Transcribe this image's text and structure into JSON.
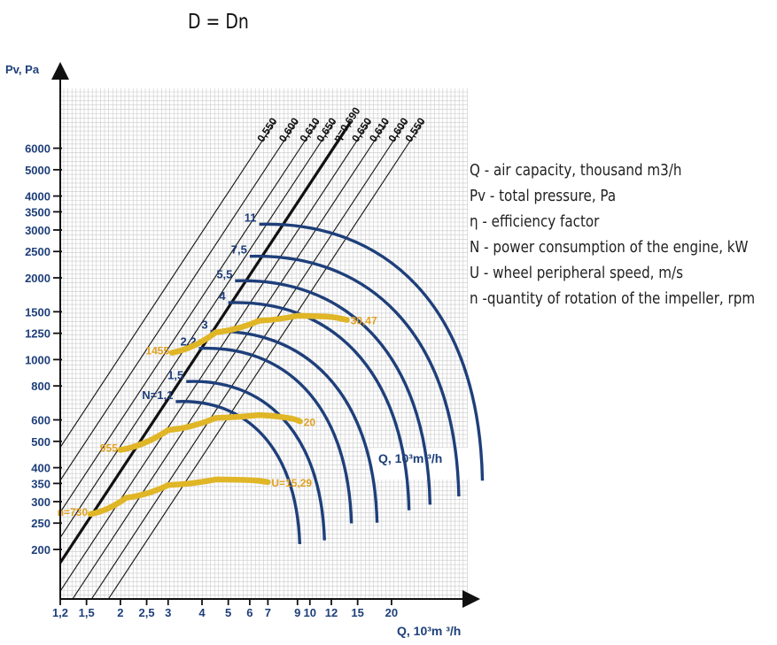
{
  "title": "D = Dn",
  "legend": [
    "Q - air capacity, thousand m3/h",
    "Pv - total pressure, Pa",
    "η - efficiency factor",
    "N - power consumption of the engine, kW",
    "U - wheel peripheral speed, m/s",
    "n -quantity of rotation of the impeller, rpm"
  ],
  "colors": {
    "grid": "#c9c9c9",
    "axis": "#111111",
    "power": "#1e3f7a",
    "speed": "#e0b627",
    "speed_label": "#e0a020",
    "text": "#222222"
  },
  "chart_data": {
    "type": "line",
    "title": "D = Dn",
    "x_axis": {
      "label_mid": "Q, 10³m ³/h",
      "label_bottom": "Q, 10³m ³/h",
      "scale": "log",
      "ticks": [
        {
          "value": 1.2,
          "label": "1,2"
        },
        {
          "value": 1.5,
          "label": "1,5"
        },
        {
          "value": 2,
          "label": "2"
        },
        {
          "value": 2.5,
          "label": "2,5"
        },
        {
          "value": 3,
          "label": "3"
        },
        {
          "value": 4,
          "label": "4"
        },
        {
          "value": 5,
          "label": "5"
        },
        {
          "value": 6,
          "label": "6"
        },
        {
          "value": 7,
          "label": "7"
        },
        {
          "value": 9,
          "label": "9"
        },
        {
          "value": 10,
          "label": "10"
        },
        {
          "value": 12,
          "label": "12"
        },
        {
          "value": 15,
          "label": "15"
        },
        {
          "value": 20,
          "label": "20"
        }
      ]
    },
    "y_axis": {
      "label": "Pv, Pa",
      "scale": "log",
      "ticks": [
        {
          "value": 200,
          "label": "200"
        },
        {
          "value": 250,
          "label": "250"
        },
        {
          "value": 300,
          "label": "300"
        },
        {
          "value": 350,
          "label": "350"
        },
        {
          "value": 400,
          "label": "400"
        },
        {
          "value": 500,
          "label": "500"
        },
        {
          "value": 600,
          "label": "600"
        },
        {
          "value": 800,
          "label": "800"
        },
        {
          "value": 1000,
          "label": "1000"
        },
        {
          "value": 1250,
          "label": "1250"
        },
        {
          "value": 1500,
          "label": "1500"
        },
        {
          "value": 2000,
          "label": "2000"
        },
        {
          "value": 2500,
          "label": "2500"
        },
        {
          "value": 3000,
          "label": "3000"
        },
        {
          "value": 3500,
          "label": "3500"
        },
        {
          "value": 4000,
          "label": "4000"
        },
        {
          "value": 5000,
          "label": "5000"
        },
        {
          "value": 6000,
          "label": "6000"
        }
      ]
    },
    "efficiency_lines": [
      {
        "label": "0,550",
        "q_at_6000pa": 6.4
      },
      {
        "label": "0,600",
        "q_at_6000pa": 7.7
      },
      {
        "label": "0,610",
        "q_at_6000pa": 9.2
      },
      {
        "label": "0,650",
        "q_at_6000pa": 10.6
      },
      {
        "label": "η=0,690",
        "q_at_6000pa": 12.2,
        "bold": true
      },
      {
        "label": "0,650",
        "q_at_6000pa": 14.3
      },
      {
        "label": "0,610",
        "q_at_6000pa": 16.6
      },
      {
        "label": "0,600",
        "q_at_6000pa": 19.5
      },
      {
        "label": "0,550",
        "q_at_6000pa": 22.5
      }
    ],
    "power_curves": [
      {
        "label": "N=1,1",
        "q_start": 3.2,
        "pv": 700
      },
      {
        "label": "1,5",
        "q_start": 3.5,
        "pv": 830
      },
      {
        "label": "2,2",
        "q_start": 3.9,
        "pv": 1100
      },
      {
        "label": "3",
        "q_start": 4.3,
        "pv": 1270
      },
      {
        "label": "4",
        "q_start": 5.0,
        "pv": 1620
      },
      {
        "label": "5,5",
        "q_start": 5.3,
        "pv": 1950
      },
      {
        "label": "7,5",
        "q_start": 6.0,
        "pv": 2400
      },
      {
        "label": "11",
        "q_start": 6.5,
        "pv": 3150
      }
    ],
    "speed_curves": [
      {
        "rpm_label": "n=730",
        "u_label": "U=15,29",
        "points": [
          [
            1.55,
            270
          ],
          [
            2.1,
            310
          ],
          [
            3.0,
            345
          ],
          [
            4.5,
            362
          ],
          [
            6.0,
            360
          ],
          [
            7.0,
            354
          ]
        ]
      },
      {
        "rpm_label": "955",
        "u_label": "20",
        "points": [
          [
            2.0,
            465
          ],
          [
            3.0,
            550
          ],
          [
            4.5,
            610
          ],
          [
            6.5,
            625
          ],
          [
            8.3,
            610
          ],
          [
            9.2,
            592
          ]
        ]
      },
      {
        "rpm_label": "1455",
        "u_label": "30,47",
        "points": [
          [
            3.1,
            1060
          ],
          [
            4.5,
            1260
          ],
          [
            6.5,
            1390
          ],
          [
            9.0,
            1450
          ],
          [
            11.5,
            1440
          ],
          [
            13.7,
            1400
          ]
        ]
      }
    ]
  }
}
